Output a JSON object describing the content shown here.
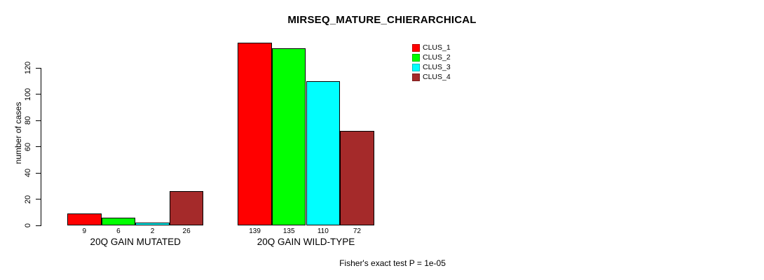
{
  "page": {
    "background": "#ffffff",
    "text_color": "#000000"
  },
  "chart_data": {
    "type": "bar",
    "title": "MIRSEQ_MATURE_CHIERARCHICAL",
    "ylabel": "number of cases",
    "xlabel": "",
    "categories": [
      "20Q GAIN MUTATED",
      "20Q GAIN WILD-TYPE"
    ],
    "series": [
      {
        "name": "CLUS_1",
        "color": "#ff0000",
        "values": [
          9,
          139
        ]
      },
      {
        "name": "CLUS_2",
        "color": "#00ff00",
        "values": [
          6,
          135
        ]
      },
      {
        "name": "CLUS_3",
        "color": "#00ffff",
        "values": [
          2,
          110
        ]
      },
      {
        "name": "CLUS_4",
        "color": "#a52a2a",
        "values": [
          26,
          72
        ]
      }
    ],
    "yticks": [
      0,
      20,
      40,
      60,
      80,
      100,
      120
    ],
    "ylim": [
      0,
      120
    ],
    "grid": false,
    "bars_show_value_labels": true,
    "legend_position": "top-right",
    "annotation": "Fisher's exact test P = 1e-05"
  }
}
